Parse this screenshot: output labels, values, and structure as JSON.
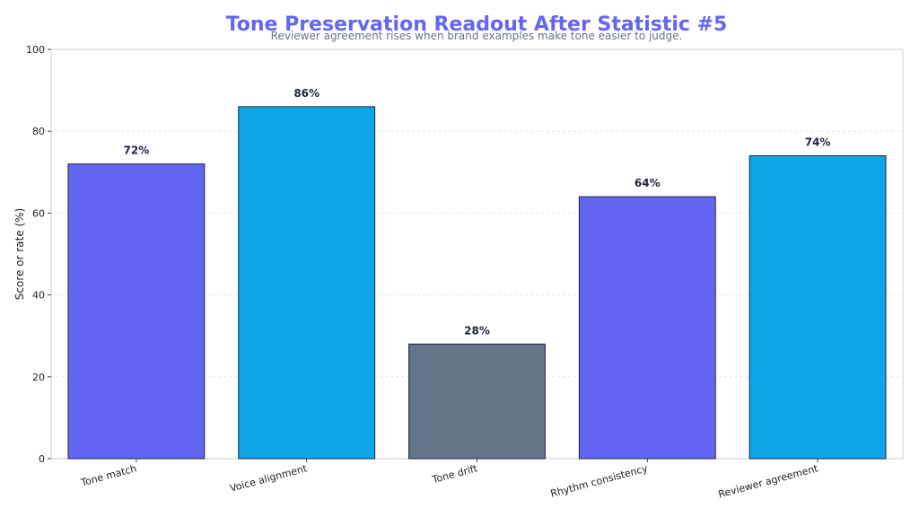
{
  "chart_data": {
    "type": "bar",
    "title": "Tone Preservation Readout After Statistic #5",
    "subtitle": "Reviewer agreement rises when brand examples make tone easier to judge.",
    "xlabel": "",
    "ylabel": "Score or rate (%)",
    "ylim": [
      0,
      100
    ],
    "yticks": [
      0,
      20,
      40,
      60,
      80,
      100
    ],
    "grid": true,
    "categories": [
      "Tone match",
      "Voice alignment",
      "Tone drift",
      "Rhythm consistency",
      "Reviewer agreement"
    ],
    "values": [
      72,
      86,
      28,
      64,
      74
    ],
    "value_labels": [
      "72%",
      "86%",
      "28%",
      "64%",
      "74%"
    ],
    "colors": [
      "#6366f1",
      "#0ea5e9",
      "#64748b",
      "#6366f1",
      "#0ea5e9"
    ]
  },
  "style": {
    "title_color": "#6366f1",
    "bar_edge_color": "#1f2340",
    "grid_color": "#e5e7eb",
    "axis_color": "#cccccc"
  }
}
